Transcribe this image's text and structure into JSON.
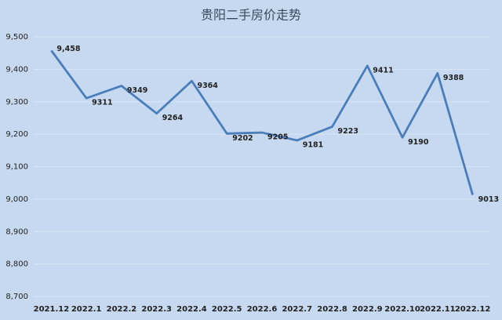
{
  "chart_data": {
    "type": "line",
    "title": "贵阳二手房价走势",
    "categories": [
      "2021.12",
      "2022.1",
      "2022.2",
      "2022.3",
      "2022.4",
      "2022.5",
      "2022.6",
      "2022.7",
      "2022.8",
      "2022.9",
      "2022.10",
      "2022.11",
      "2022.12"
    ],
    "series": [
      {
        "name": "贵阳二手房价",
        "color": "#4a7ebb",
        "values": [
          9458,
          9311,
          9349,
          9264,
          9364,
          9202,
          9205,
          9181,
          9223,
          9411,
          9190,
          9388,
          9013
        ],
        "value_labels": [
          "9,458",
          "9311",
          "9349",
          "9264",
          "9364",
          "9202",
          "9205",
          "9181",
          "9223",
          "9411",
          "9190",
          "9388",
          "9013"
        ]
      }
    ],
    "ylim": [
      8700,
      9500
    ],
    "yticks": [
      {
        "value": 8700,
        "label": "8,700"
      },
      {
        "value": 8800,
        "label": "8,800"
      },
      {
        "value": 8900,
        "label": "8,900"
      },
      {
        "value": 9000,
        "label": "9,000"
      },
      {
        "value": 9100,
        "label": "9,100"
      },
      {
        "value": 9200,
        "label": "9,200"
      },
      {
        "value": 9300,
        "label": "9,300"
      },
      {
        "value": 9400,
        "label": "9,400"
      },
      {
        "value": 9500,
        "label": "9,500"
      }
    ],
    "grid": true
  }
}
